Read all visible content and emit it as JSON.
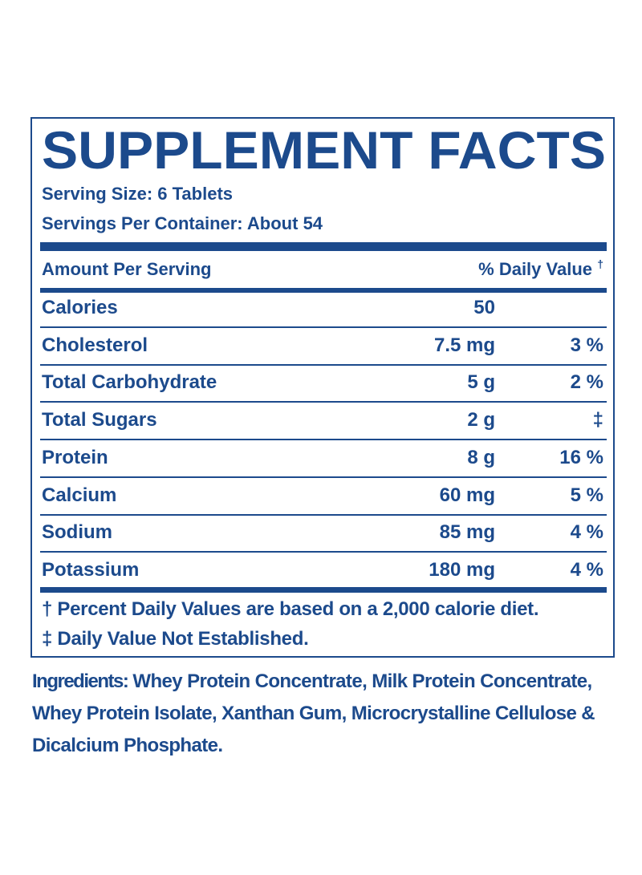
{
  "title": "SUPPLEMENT FACTS",
  "serving_size": "Serving Size: 6 Tablets",
  "servings_per_container": "Servings Per Container: About 54",
  "header": {
    "amount": "Amount Per Serving",
    "daily_value": "% Daily Value",
    "daily_value_mark": "†"
  },
  "rows": [
    {
      "name": "Calories",
      "amount": "50"
    },
    {
      "name": "Cholesterol",
      "amount": "7.5 mg",
      "dv": "3 %"
    },
    {
      "name": "Total Carbohydrate",
      "amount": "5 g",
      "dv": "2 %"
    },
    {
      "name": "Total Sugars",
      "amount": "2 g",
      "dv": "‡"
    },
    {
      "name": "Protein",
      "amount": "8 g",
      "dv": "16 %"
    },
    {
      "name": "Calcium",
      "amount": "60 mg",
      "dv": "5 %"
    },
    {
      "name": "Sodium",
      "amount": "85 mg",
      "dv": "4 %"
    },
    {
      "name": "Potassium",
      "amount": "180 mg",
      "dv": "4 %"
    }
  ],
  "footnotes": [
    "† Percent Daily Values are based on a 2,000 calorie diet.",
    "‡ Daily Value Not Established."
  ],
  "ingredients": {
    "label": "Ingredients:",
    "text": "Whey Protein Concentrate, Milk Protein Concentrate, Whey Protein Isolate, Xanthan Gum, Microcrystalline Cellulose & Dicalcium Phosphate."
  }
}
